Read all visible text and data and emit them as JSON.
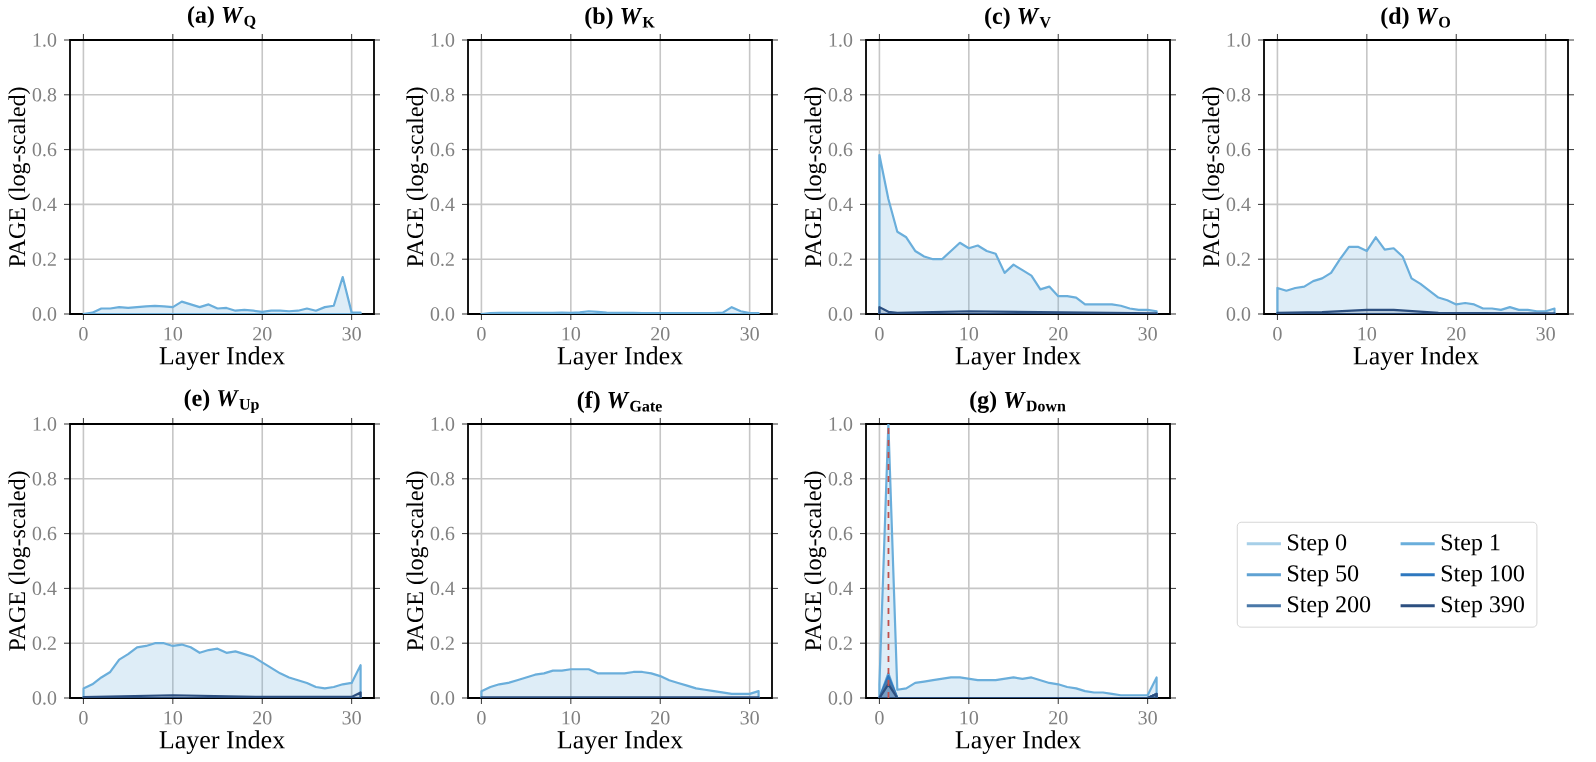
{
  "chart_data": [
    {
      "type": "area",
      "title": "(a) *W*$_{Q}$",
      "xlabel": "Layer Index",
      "ylabel": "PAGE (log-scaled)",
      "xlim": [
        -1.5,
        32.5
      ],
      "xticks": [
        0,
        10,
        20,
        30
      ],
      "ylim": [
        0,
        1
      ],
      "yticks": [
        {
          "value": 0,
          "label": "0.0"
        },
        {
          "value": 0.2,
          "label": "0.2"
        },
        {
          "value": 0.4,
          "label": "0.4"
        },
        {
          "value": 0.6,
          "label": "0.6"
        },
        {
          "value": 0.8,
          "label": "0.8"
        },
        {
          "value": 1,
          "label": "1.0"
        }
      ],
      "grid": true,
      "x": [
        0,
        1,
        2,
        3,
        4,
        5,
        6,
        7,
        8,
        9,
        10,
        11,
        12,
        13,
        14,
        15,
        16,
        17,
        18,
        19,
        20,
        21,
        22,
        23,
        24,
        25,
        26,
        27,
        28,
        29,
        30,
        31
      ],
      "series": [
        {
          "color": "#6aaedb",
          "values": [
            0,
            0.005,
            0.02,
            0.02,
            0.025,
            0.022,
            0.025,
            0.028,
            0.03,
            0.028,
            0.025,
            0.045,
            0.035,
            0.025,
            0.035,
            0.02,
            0.022,
            0.012,
            0.015,
            0.012,
            0.008,
            0.012,
            0.012,
            0.01,
            0.012,
            0.02,
            0.012,
            0.025,
            0.03,
            0.135,
            0.005,
            0.005
          ]
        }
      ]
    },
    {
      "type": "area",
      "title": "(b) *W*$_{K}$",
      "xlabel": "Layer Index",
      "ylabel": "PAGE (log-scaled)",
      "xlim": [
        -1.5,
        32.5
      ],
      "xticks": [
        0,
        10,
        20,
        30
      ],
      "ylim": [
        0,
        1
      ],
      "yticks": [
        {
          "value": 0,
          "label": "0.0"
        },
        {
          "value": 0.2,
          "label": "0.2"
        },
        {
          "value": 0.4,
          "label": "0.4"
        },
        {
          "value": 0.6,
          "label": "0.6"
        },
        {
          "value": 0.8,
          "label": "0.8"
        },
        {
          "value": 1,
          "label": "1.0"
        }
      ],
      "grid": true,
      "x": [
        0,
        1,
        2,
        3,
        4,
        5,
        6,
        7,
        8,
        9,
        10,
        11,
        12,
        13,
        14,
        15,
        16,
        17,
        18,
        19,
        20,
        21,
        22,
        23,
        24,
        25,
        26,
        27,
        28,
        29,
        30,
        31
      ],
      "series": [
        {
          "color": "#6aaedb",
          "values": [
            0,
            0.003,
            0.004,
            0.004,
            0.004,
            0.004,
            0.004,
            0.004,
            0.004,
            0.005,
            0.004,
            0.006,
            0.01,
            0.008,
            0.005,
            0.004,
            0.004,
            0.004,
            0.003,
            0.003,
            0.003,
            0.003,
            0.003,
            0.003,
            0.003,
            0.003,
            0.003,
            0.005,
            0.025,
            0.01,
            0.003,
            0.003
          ]
        }
      ]
    },
    {
      "type": "area",
      "title": "(c) *W*$_{V}$",
      "xlabel": "Layer Index",
      "ylabel": "PAGE (log-scaled)",
      "xlim": [
        -1.5,
        32.5
      ],
      "xticks": [
        0,
        10,
        20,
        30
      ],
      "ylim": [
        0,
        1
      ],
      "yticks": [
        {
          "value": 0,
          "label": "0.0"
        },
        {
          "value": 0.2,
          "label": "0.2"
        },
        {
          "value": 0.4,
          "label": "0.4"
        },
        {
          "value": 0.6,
          "label": "0.6"
        },
        {
          "value": 0.8,
          "label": "0.8"
        },
        {
          "value": 1,
          "label": "1.0"
        }
      ],
      "grid": true,
      "x": [
        0,
        1,
        2,
        3,
        4,
        5,
        6,
        7,
        8,
        9,
        10,
        11,
        12,
        13,
        14,
        15,
        16,
        17,
        18,
        19,
        20,
        21,
        22,
        23,
        24,
        25,
        26,
        27,
        28,
        29,
        30,
        31
      ],
      "series": [
        {
          "color": "#6aaedb",
          "values": [
            0.58,
            0.42,
            0.3,
            0.28,
            0.23,
            0.21,
            0.2,
            0.2,
            0.23,
            0.26,
            0.24,
            0.25,
            0.23,
            0.22,
            0.15,
            0.18,
            0.16,
            0.14,
            0.09,
            0.1,
            0.065,
            0.065,
            0.06,
            0.035,
            0.035,
            0.035,
            0.035,
            0.03,
            0.02,
            0.015,
            0.015,
            0.01
          ]
        },
        {
          "color": "#2c4f80",
          "x": [
            0,
            1,
            2,
            10,
            31
          ],
          "values": [
            0.025,
            0.008,
            0.004,
            0.01,
            0.002
          ]
        }
      ]
    },
    {
      "type": "area",
      "title": "(d) *W*$_{O}$",
      "xlabel": "Layer Index",
      "ylabel": "PAGE (log-scaled)",
      "xlim": [
        -1.5,
        32.5
      ],
      "xticks": [
        0,
        10,
        20,
        30
      ],
      "ylim": [
        0,
        1
      ],
      "yticks": [
        {
          "value": 0,
          "label": "0.0"
        },
        {
          "value": 0.2,
          "label": "0.2"
        },
        {
          "value": 0.4,
          "label": "0.4"
        },
        {
          "value": 0.6,
          "label": "0.6"
        },
        {
          "value": 0.8,
          "label": "0.8"
        },
        {
          "value": 1,
          "label": "1.0"
        }
      ],
      "grid": true,
      "x": [
        0,
        1,
        2,
        3,
        4,
        5,
        6,
        7,
        8,
        9,
        10,
        11,
        12,
        13,
        14,
        15,
        16,
        17,
        18,
        19,
        20,
        21,
        22,
        23,
        24,
        25,
        26,
        27,
        28,
        29,
        30,
        31
      ],
      "series": [
        {
          "color": "#6aaedb",
          "values": [
            0.095,
            0.085,
            0.095,
            0.1,
            0.12,
            0.13,
            0.15,
            0.2,
            0.245,
            0.245,
            0.23,
            0.28,
            0.235,
            0.24,
            0.21,
            0.13,
            0.11,
            0.085,
            0.06,
            0.05,
            0.035,
            0.04,
            0.035,
            0.02,
            0.02,
            0.015,
            0.025,
            0.015,
            0.015,
            0.01,
            0.01,
            0.02
          ]
        },
        {
          "color": "#2c4f80",
          "x": [
            0,
            5,
            10,
            13,
            18,
            31
          ],
          "values": [
            0.004,
            0.007,
            0.015,
            0.015,
            0.004,
            0.002
          ]
        }
      ]
    },
    {
      "type": "area",
      "title": "(e) *W*$_{Up}$",
      "xlabel": "Layer Index",
      "ylabel": "PAGE (log-scaled)",
      "xlim": [
        -1.5,
        32.5
      ],
      "xticks": [
        0,
        10,
        20,
        30
      ],
      "ylim": [
        0,
        1
      ],
      "yticks": [
        {
          "value": 0,
          "label": "0.0"
        },
        {
          "value": 0.2,
          "label": "0.2"
        },
        {
          "value": 0.4,
          "label": "0.4"
        },
        {
          "value": 0.6,
          "label": "0.6"
        },
        {
          "value": 0.8,
          "label": "0.8"
        },
        {
          "value": 1,
          "label": "1.0"
        }
      ],
      "grid": true,
      "x": [
        0,
        1,
        2,
        3,
        4,
        5,
        6,
        7,
        8,
        9,
        10,
        11,
        12,
        13,
        14,
        15,
        16,
        17,
        18,
        19,
        20,
        21,
        22,
        23,
        24,
        25,
        26,
        27,
        28,
        29,
        30,
        31
      ],
      "series": [
        {
          "color": "#6aaedb",
          "values": [
            0.035,
            0.05,
            0.075,
            0.095,
            0.14,
            0.16,
            0.185,
            0.19,
            0.2,
            0.2,
            0.19,
            0.195,
            0.185,
            0.165,
            0.175,
            0.18,
            0.165,
            0.17,
            0.16,
            0.15,
            0.13,
            0.11,
            0.09,
            0.075,
            0.065,
            0.055,
            0.04,
            0.035,
            0.04,
            0.05,
            0.055,
            0.12
          ]
        },
        {
          "color": "#2c4f80",
          "x": [
            0,
            10,
            20,
            30,
            31
          ],
          "values": [
            0.003,
            0.01,
            0.004,
            0.004,
            0.02
          ]
        }
      ]
    },
    {
      "type": "area",
      "title": "(f) *W*$_{Gate}$",
      "xlabel": "Layer Index",
      "ylabel": "PAGE (log-scaled)",
      "xlim": [
        -1.5,
        32.5
      ],
      "xticks": [
        0,
        10,
        20,
        30
      ],
      "ylim": [
        0,
        1
      ],
      "yticks": [
        {
          "value": 0,
          "label": "0.0"
        },
        {
          "value": 0.2,
          "label": "0.2"
        },
        {
          "value": 0.4,
          "label": "0.4"
        },
        {
          "value": 0.6,
          "label": "0.6"
        },
        {
          "value": 0.8,
          "label": "0.8"
        },
        {
          "value": 1,
          "label": "1.0"
        }
      ],
      "grid": true,
      "x": [
        0,
        1,
        2,
        3,
        4,
        5,
        6,
        7,
        8,
        9,
        10,
        11,
        12,
        13,
        14,
        15,
        16,
        17,
        18,
        19,
        20,
        21,
        22,
        23,
        24,
        25,
        26,
        27,
        28,
        29,
        30,
        31
      ],
      "series": [
        {
          "color": "#6aaedb",
          "values": [
            0.025,
            0.04,
            0.05,
            0.055,
            0.065,
            0.075,
            0.085,
            0.09,
            0.1,
            0.1,
            0.105,
            0.105,
            0.105,
            0.09,
            0.09,
            0.09,
            0.09,
            0.095,
            0.095,
            0.09,
            0.08,
            0.065,
            0.055,
            0.045,
            0.035,
            0.03,
            0.025,
            0.02,
            0.015,
            0.015,
            0.015,
            0.025
          ]
        },
        {
          "color": "#2c4f80",
          "x": [
            0,
            31
          ],
          "values": [
            0.002,
            0.002
          ]
        }
      ]
    },
    {
      "type": "area",
      "title": "(g) *W*$_{Down}$",
      "xlabel": "Layer Index",
      "ylabel": "PAGE (log-scaled)",
      "xlim": [
        -1.5,
        32.5
      ],
      "xticks": [
        0,
        10,
        20,
        30
      ],
      "ylim": [
        0,
        1
      ],
      "yticks": [
        {
          "value": 0,
          "label": "0.0"
        },
        {
          "value": 0.2,
          "label": "0.2"
        },
        {
          "value": 0.4,
          "label": "0.4"
        },
        {
          "value": 0.6,
          "label": "0.6"
        },
        {
          "value": 0.8,
          "label": "0.8"
        },
        {
          "value": 1,
          "label": "1.0"
        }
      ],
      "grid": true,
      "legend": "right",
      "x": [
        0,
        1,
        2,
        3,
        4,
        5,
        6,
        7,
        8,
        9,
        10,
        11,
        12,
        13,
        14,
        15,
        16,
        17,
        18,
        19,
        20,
        21,
        22,
        23,
        24,
        25,
        26,
        27,
        28,
        29,
        30,
        31
      ],
      "ref_lines": [
        {
          "axis": "x",
          "value": 1,
          "color": "#c0504d",
          "line_style": "dashed"
        }
      ],
      "series": [
        {
          "name": "Step 0",
          "color": "#a6cfe8",
          "values": [
            null,
            null,
            null,
            null,
            null,
            null,
            null,
            null,
            null,
            null,
            null,
            null,
            null,
            null,
            null,
            null,
            null,
            null,
            null,
            null,
            null,
            null,
            null,
            null,
            null,
            null,
            null,
            null,
            null,
            null,
            null,
            null
          ]
        },
        {
          "name": "Step 1",
          "color": "#6aaedb",
          "values": [
            0.05,
            1.0,
            0.03,
            0.035,
            0.055,
            0.06,
            0.065,
            0.07,
            0.075,
            0.075,
            0.07,
            0.065,
            0.065,
            0.065,
            0.07,
            0.075,
            0.07,
            0.075,
            0.065,
            0.055,
            0.05,
            0.04,
            0.035,
            0.025,
            0.02,
            0.02,
            0.015,
            0.01,
            0.01,
            0.01,
            0.01,
            0.075
          ]
        },
        {
          "name": "Step 50",
          "color": "#5fa2d3",
          "x": [
            0,
            1,
            2,
            30,
            31
          ],
          "values": [
            0,
            0.09,
            0,
            0,
            0.015
          ]
        },
        {
          "name": "Step 100",
          "color": "#2e78bf",
          "x": [
            0,
            1,
            2,
            30,
            31
          ],
          "values": [
            0,
            0.08,
            0,
            0,
            0.015
          ]
        },
        {
          "name": "Step 200",
          "color": "#4a78a8",
          "x": [
            0,
            1,
            2,
            30,
            31
          ],
          "values": [
            0,
            0.065,
            0,
            0,
            0.015
          ]
        },
        {
          "name": "Step 390",
          "color": "#2c4f80",
          "x": [
            0,
            1,
            2,
            30,
            31
          ],
          "values": [
            0,
            0.05,
            0,
            0,
            0.015
          ]
        }
      ]
    }
  ]
}
